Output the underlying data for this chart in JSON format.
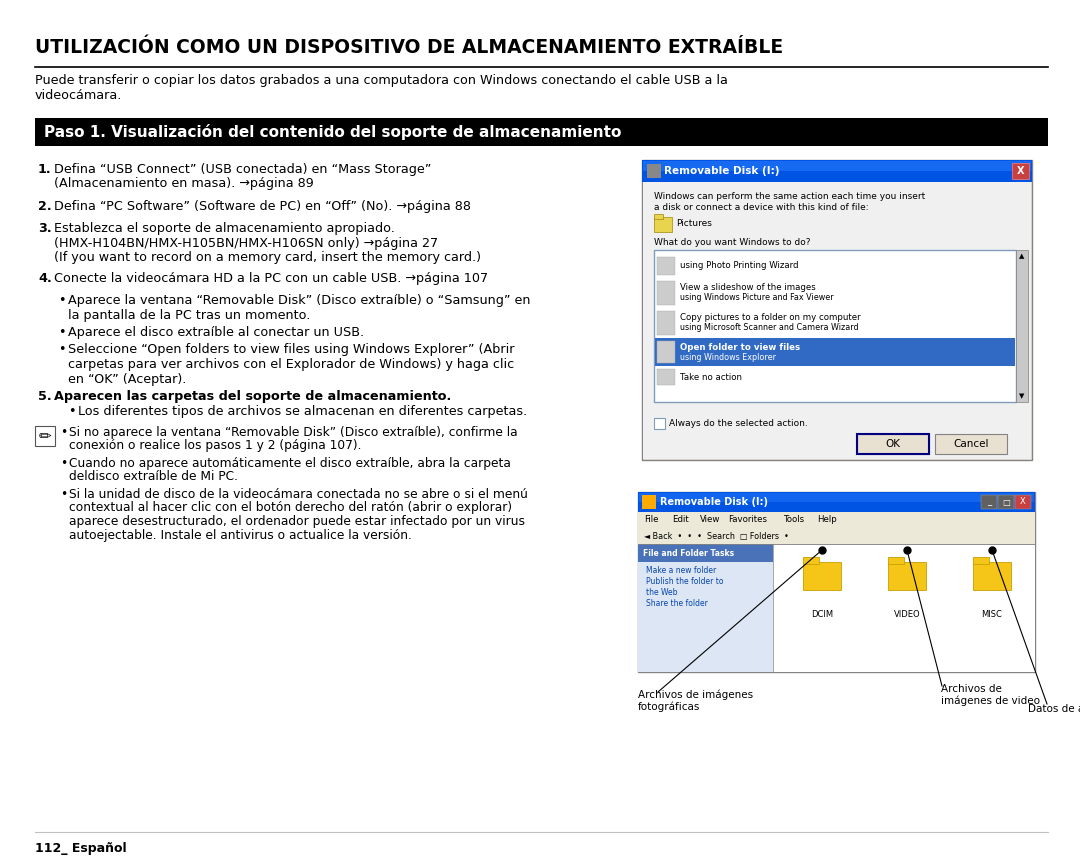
{
  "bg_color": "#ffffff",
  "title": "UTILIZACIÓN COMO UN DISPOSITIVO DE ALMACENAMIENTO EXTRAÍBLE",
  "step_header": "Paso 1. Visualización del contenido del soporte de almacenamiento",
  "intro_text": "Puede transferir o copiar los datos grabados a una computadora con Windows conectando el cable USB a la\nvideocámara.",
  "item1a": "Defina “USB Connect” (USB conectada) en “Mass Storage”",
  "item1b": "(Almacenamiento en masa). →página 89",
  "item2": "Defina “PC Software” (Software de PC) en “Off” (No). →página 88",
  "item3a": "Establezca el soporte de almacenamiento apropiado.",
  "item3b": "(HMX-H104BN/HMX-H105BN/HMX-H106SN only) →página 27",
  "item3c": "(If you want to record on a memory card, insert the memory card.)",
  "item4": "Conecte la videocámara HD a la PC con un cable USB. →página 107",
  "bullet1": "Aparece la ventana “Removable Disk” (Disco extraíble) o “Samsung” en la pantalla de la PC tras un momento.",
  "bullet2": "Aparece el disco extraíble al conectar un USB.",
  "bullet3a": "Seleccione “Open folders to view files using Windows Explorer” (Abrir",
  "bullet3b": "carpetas para ver archivos con el Explorador de Windows) y haga clic",
  "bullet3c": "en “OK” (Aceptar).",
  "item5": "Aparecen las carpetas del soporte de almacenamiento.",
  "item5b": "Los diferentes tipos de archivos se almacenan en diferentes carpetas.",
  "note1a": "Si no aparece la ventana “Removable Disk” (Disco extraíble), confirme la",
  "note1b": "conexión o realice los pasos 1 y 2 (página 107).",
  "note2a": "Cuando no aparece automáticamente el disco extraíble, abra la carpeta",
  "note2b": "deldisco extraíble de Mi PC.",
  "note3a": "Si la unidad de disco de la videocámara conectada no se abre o si el menú",
  "note3b": "contextual al hacer clic con el botón derecho del ratón (abrir o explorar)",
  "note3c": "aparece desestructurado, el ordenador puede estar infectado por un virus",
  "note3d": "autoejectable. Instale el antivirus o actualice la versión.",
  "footer": "112_ Español",
  "cap1a": "Archivos de imágenes",
  "cap1b": "fotográficas",
  "cap2a": "Archivos de",
  "cap2b": "imágenes de video",
  "cap3": "Datos de ajustes",
  "dlg1_title": "Removable Disk (I:)",
  "dlg1_text1": "Windows can perform the same action each time you insert",
  "dlg1_text2": "a disk or connect a device with this kind of file:",
  "dlg1_pictures": "Pictures",
  "dlg1_question": "What do you want Windows to do?",
  "dlg1_items": [
    "using Photo Printing Wizard",
    "View a slideshow of the images\nusing Windows Picture and Fax Viewer",
    "Copy pictures to a folder on my computer\nusing Microsoft Scanner and Camera Wizard",
    "Open folder to view files\nusing Windows Explorer",
    "Take no action"
  ],
  "dlg1_checkbox": "Always do the selected action.",
  "dlg2_title": "Removable Disk (I:)",
  "dlg2_menus": [
    "File",
    "Edit",
    "View",
    "Favorites",
    "Tools",
    "Help"
  ],
  "dlg2_folders": [
    "DCIM",
    "VIDEO",
    "MISC"
  ],
  "dlg2_panel_title": "File and Folder Tasks",
  "dlg2_tasks": [
    "Make a new folder",
    "Publish the folder to\nthe Web",
    "Share the folder"
  ]
}
